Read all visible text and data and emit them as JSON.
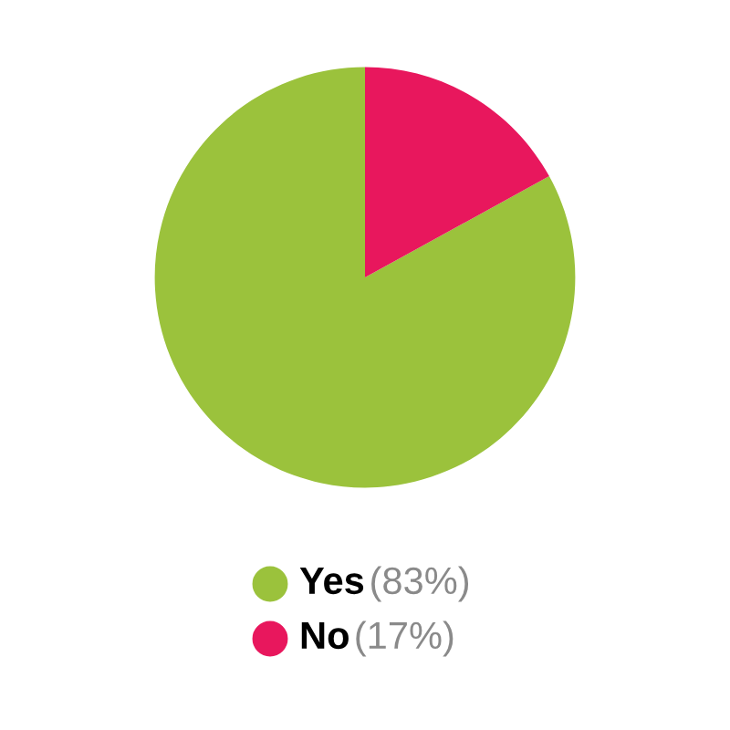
{
  "chart_data": {
    "type": "pie",
    "categories": [
      "Yes",
      "No"
    ],
    "values": [
      83,
      17
    ],
    "colors": [
      "#9bc23c",
      "#e8175d"
    ],
    "value_labels": [
      "(83%)",
      "(17%)"
    ],
    "legend": "bottom"
  }
}
